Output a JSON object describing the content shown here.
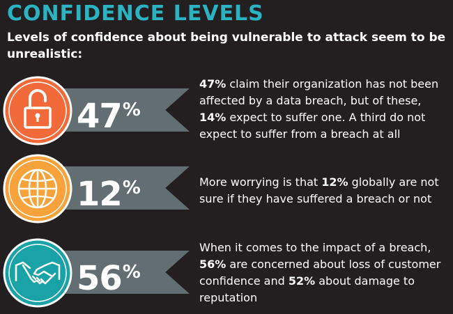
{
  "title": "CONFIDENCE LEVELS",
  "subtitle": "Levels of confidence about being vulnerable to attack seem to be unrealistic:",
  "colors": {
    "background": "#231f20",
    "title": "#2bb3c2",
    "ribbon": "#636e73",
    "orange_red": "#f26a3a",
    "orange": "#f7a23a",
    "teal": "#1aa3a7"
  },
  "stats": [
    {
      "icon": "unlocked-padlock-icon",
      "value": "47",
      "sign": "%",
      "desc_p1_bold": "47%",
      "desc_p1": " claim their organization has not been affected by a data breach, but of these, ",
      "desc_p2_bold": "14%",
      "desc_p2": " expect to suffer one. A third do not expect to suffer from a breach at all"
    },
    {
      "icon": "globe-icon",
      "value": "12",
      "sign": "%",
      "desc_p0": "More worrying is that ",
      "desc_p1_bold": "12%",
      "desc_p1": " globally are not sure if they have suffered a breach or not"
    },
    {
      "icon": "handshake-icon",
      "value": "56",
      "sign": "%",
      "desc_p0": "When it comes to the impact of a breach, ",
      "desc_p1_bold": "56%",
      "desc_p1": " are concerned about loss of customer confidence and ",
      "desc_p2_bold": "52%",
      "desc_p2": " about damage to reputation"
    }
  ]
}
